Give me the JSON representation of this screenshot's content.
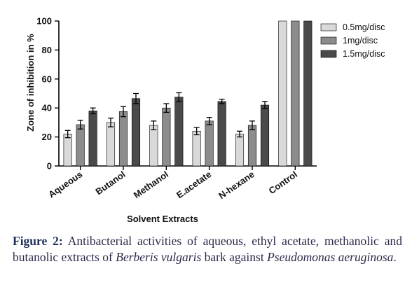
{
  "chart_data": {
    "type": "bar",
    "xlabel": "Solvent Extracts",
    "ylabel": "Zone of inhibition in %",
    "ylim": [
      0,
      100
    ],
    "yticks": [
      0,
      20,
      40,
      60,
      80,
      100
    ],
    "grid": false,
    "legend_position": "top-right",
    "categories": [
      "Aqueous",
      "Butanol",
      "Methanol",
      "E.acetate",
      "N-hexane",
      "Control"
    ],
    "series": [
      {
        "name": "0.5mg/disc",
        "color": "#d9d9d9",
        "values": [
          22,
          30,
          28,
          24,
          22,
          100
        ],
        "errors": [
          2.5,
          3,
          3,
          2.5,
          2,
          0
        ]
      },
      {
        "name": "1mg/disc",
        "color": "#8c8c8c",
        "values": [
          28.5,
          37.5,
          40,
          31,
          28,
          100
        ],
        "errors": [
          3,
          3.5,
          3,
          2.5,
          3,
          0
        ]
      },
      {
        "name": "1.5mg/disc",
        "color": "#4a4a4a",
        "values": [
          38,
          46.5,
          47.5,
          44.5,
          42,
          100
        ],
        "errors": [
          2,
          3.5,
          3,
          1.5,
          2.5,
          0
        ]
      }
    ]
  },
  "caption": {
    "label": "Figure 2:",
    "text_1": " Antibacterial activities of aqueous, ethyl acetate, methanolic and butanolic extracts of ",
    "species": "Berberis vulgaris",
    "text_2": " bark against ",
    "organism": "Pseudomonas aeruginosa",
    "text_3": "."
  }
}
